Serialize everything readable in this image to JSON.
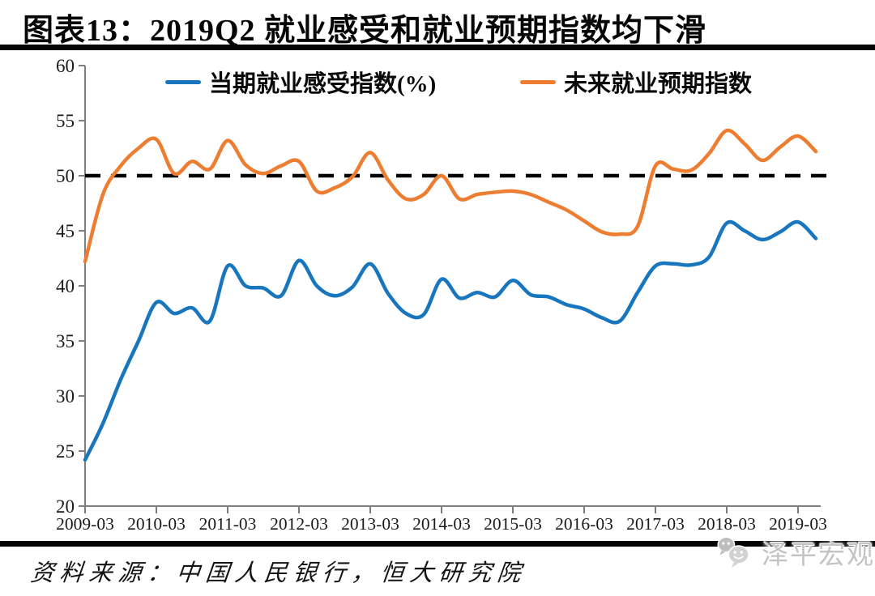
{
  "title": "图表13：2019Q2 就业感受和就业预期指数均下滑",
  "source_note": "资料来源：中国人民银行，恒大研究院",
  "watermark": {
    "label": "泽平宏观",
    "icon": "wechat-icon",
    "color": "#c4c4c4"
  },
  "colors": {
    "axis": "#7f7f7f",
    "tick_text": "#1a1a1a",
    "reference_line": "#000000",
    "title_rule": "#050505"
  },
  "chart_data": {
    "type": "line",
    "smooth": true,
    "legend_position": "top",
    "grid": false,
    "ylim": [
      20,
      60
    ],
    "y_ticks": [
      20,
      25,
      30,
      35,
      40,
      45,
      50,
      55,
      60
    ],
    "x_tick_labels": [
      "2009-03",
      "2010-03",
      "2011-03",
      "2012-03",
      "2013-03",
      "2014-03",
      "2015-03",
      "2016-03",
      "2017-03",
      "2018-03",
      "2019-03"
    ],
    "reference_line": {
      "value": 50,
      "style": "dashed",
      "color": "#000000"
    },
    "x": [
      "2009-03",
      "2009-06",
      "2009-09",
      "2009-12",
      "2010-03",
      "2010-06",
      "2010-09",
      "2010-12",
      "2011-03",
      "2011-06",
      "2011-09",
      "2011-12",
      "2012-03",
      "2012-06",
      "2012-09",
      "2012-12",
      "2013-03",
      "2013-06",
      "2013-09",
      "2013-12",
      "2014-03",
      "2014-06",
      "2014-09",
      "2014-12",
      "2015-03",
      "2015-06",
      "2015-09",
      "2015-12",
      "2016-03",
      "2016-06",
      "2016-09",
      "2016-12",
      "2017-03",
      "2017-06",
      "2017-09",
      "2017-12",
      "2018-03",
      "2018-06",
      "2018-09",
      "2018-12",
      "2019-03",
      "2019-06"
    ],
    "series": [
      {
        "name": "当期就业感受指数(%)",
        "color": "#1776be",
        "values": [
          24.2,
          27.5,
          31.5,
          35.0,
          38.5,
          37.5,
          38.0,
          36.8,
          41.8,
          40.0,
          39.8,
          39.1,
          42.3,
          40.0,
          39.1,
          39.9,
          42.0,
          39.3,
          37.5,
          37.4,
          40.6,
          38.9,
          39.4,
          39.0,
          40.5,
          39.2,
          39.0,
          38.3,
          37.9,
          37.1,
          36.8,
          39.4,
          41.8,
          42.0,
          41.9,
          42.6,
          45.7,
          45.0,
          44.2,
          44.9,
          45.8,
          44.3
        ]
      },
      {
        "name": "未来就业预期指数",
        "color": "#ed7d31",
        "values": [
          42.2,
          48.3,
          50.9,
          52.5,
          53.3,
          50.2,
          51.3,
          50.6,
          53.2,
          51.0,
          50.2,
          50.9,
          51.3,
          48.6,
          48.9,
          49.9,
          52.1,
          49.6,
          47.9,
          48.3,
          50.0,
          47.9,
          48.3,
          48.5,
          48.6,
          48.3,
          47.6,
          46.9,
          45.9,
          44.9,
          44.7,
          45.4,
          50.9,
          50.6,
          50.5,
          52.0,
          54.1,
          52.9,
          51.4,
          52.6,
          53.6,
          52.2
        ]
      }
    ]
  }
}
